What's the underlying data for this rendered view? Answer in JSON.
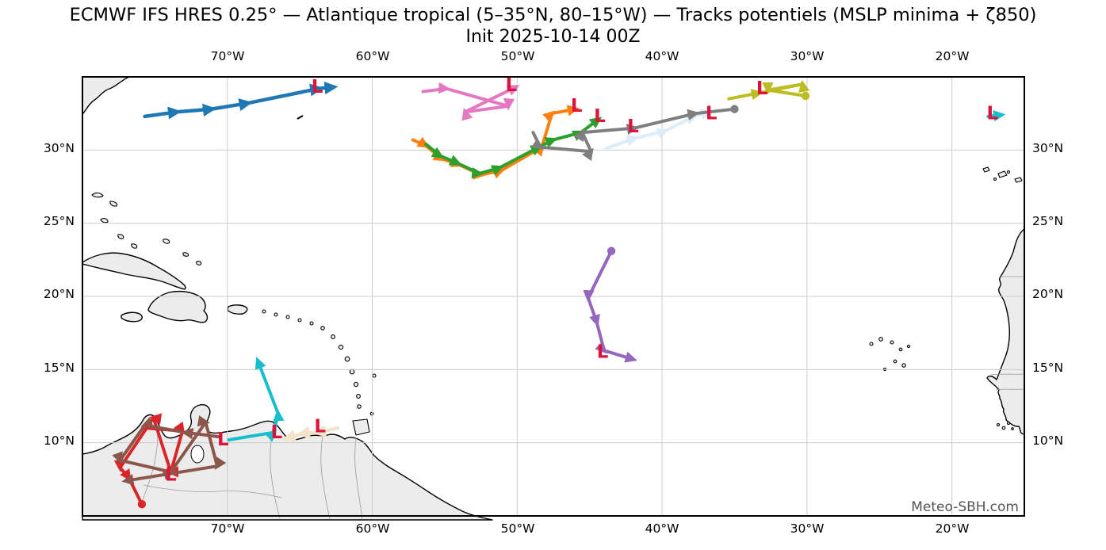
{
  "title": "ECMWF IFS HRES 0.25° — Atlantique tropical (5–35°N, 80–15°W) — Tracks potentiels (MSLP minima + ζ850)",
  "subtitle": "Init 2025-10-14 00Z",
  "watermark": "Meteo-SBH.com",
  "axis": {
    "top": [
      "70°W",
      "60°W",
      "50°W",
      "40°W",
      "30°W",
      "20°W"
    ],
    "bottom": [
      "70°W",
      "60°W",
      "50°W",
      "40°W",
      "30°W",
      "20°W"
    ],
    "left": [
      "30°N",
      "25°N",
      "20°N",
      "15°N",
      "10°N"
    ],
    "right": [
      "30°N",
      "25°N",
      "20°N",
      "15°N",
      "10°N"
    ]
  },
  "chart_data": {
    "type": "map-tracks",
    "projection_extent": {
      "lon_west": 80,
      "lon_east": 15,
      "lat_south": 5,
      "lat_north": 35
    },
    "gridlines": {
      "lons_w": [
        70,
        60,
        50,
        40,
        30,
        20
      ],
      "lats_n": [
        10,
        15,
        20,
        25,
        30
      ],
      "color": "#cccccc"
    },
    "low_symbol": "L",
    "low_color": "#dc143c",
    "tracks": [
      {
        "name": "cream-trinidad",
        "color": "#f3e3c9",
        "width": 4.5,
        "points": [
          [
            62.4,
            11.0
          ],
          [
            63.8,
            10.7
          ],
          [
            64.9,
            10.6
          ],
          [
            65.9,
            10.3
          ]
        ],
        "low": [
          63.6,
          11.2
        ]
      },
      {
        "name": "lightblue-central-atlantic",
        "color": "#ddecf9",
        "width": 4,
        "points": [
          [
            43.9,
            30.1
          ],
          [
            41.9,
            30.8
          ],
          [
            39.8,
            31.3
          ],
          [
            37.8,
            32.3
          ],
          [
            36.8,
            32.6
          ]
        ],
        "low": [
          36.6,
          32.6
        ]
      },
      {
        "name": "blue-northwest",
        "color": "#1f77b4",
        "width": 4.5,
        "points": [
          [
            75.7,
            32.3
          ],
          [
            73.5,
            32.6
          ],
          [
            71.1,
            32.8
          ],
          [
            68.6,
            33.2
          ],
          [
            63.7,
            34.2
          ],
          [
            62.7,
            34.3
          ]
        ],
        "low": [
          63.8,
          34.4
        ]
      },
      {
        "name": "pink-north-zigzag",
        "color": "#e377c2",
        "width": 4,
        "points": [
          [
            56.5,
            34.0
          ],
          [
            54.9,
            34.2
          ],
          [
            50.6,
            33.0
          ],
          [
            53.6,
            32.6
          ],
          [
            50.1,
            34.3
          ]
        ],
        "low": [
          50.4,
          34.5
        ]
      },
      {
        "name": "orange-recurving",
        "color": "#ff7f0e",
        "width": 4,
        "points": [
          [
            57.2,
            30.7
          ],
          [
            56.3,
            30.3
          ],
          [
            55.2,
            29.4
          ],
          [
            54.0,
            29.0
          ],
          [
            52.5,
            28.3
          ],
          [
            51.1,
            28.6
          ],
          [
            48.3,
            30.2
          ],
          [
            47.6,
            32.5
          ],
          [
            46.0,
            32.8
          ]
        ],
        "low": [
          45.9,
          33.1
        ]
      },
      {
        "name": "green-recurving",
        "color": "#2ca02c",
        "width": 4,
        "points": [
          [
            56.3,
            30.4
          ],
          [
            55.3,
            29.6
          ],
          [
            54.1,
            29.1
          ],
          [
            52.6,
            28.4
          ],
          [
            51.2,
            28.8
          ],
          [
            48.5,
            30.2
          ],
          [
            47.5,
            30.7
          ],
          [
            45.6,
            31.2
          ],
          [
            44.4,
            32.1
          ]
        ],
        "low": [
          44.3,
          32.4
        ]
      },
      {
        "name": "gray-central",
        "color": "#7f7f7f",
        "width": 4,
        "end_dot": true,
        "points": [
          [
            48.9,
            31.2
          ],
          [
            48.4,
            30.2
          ],
          [
            44.9,
            29.9
          ],
          [
            45.5,
            31.2
          ],
          [
            41.9,
            31.5
          ],
          [
            37.7,
            32.5
          ],
          [
            35.0,
            32.8
          ]
        ],
        "low": [
          42.0,
          31.7
        ]
      },
      {
        "name": "olive-northeast",
        "color": "#bcbd22",
        "width": 4,
        "end_dot": true,
        "points": [
          [
            35.4,
            33.5
          ],
          [
            33.3,
            33.9
          ],
          [
            30.3,
            34.5
          ],
          [
            32.7,
            34.1
          ],
          [
            30.1,
            33.7
          ]
        ],
        "low": [
          33.1,
          34.3
        ]
      },
      {
        "name": "cyan-far-east",
        "color": "#17becf",
        "width": 4,
        "points": [
          [
            17.5,
            32.3
          ],
          [
            16.6,
            32.4
          ]
        ],
        "low": [
          17.2,
          32.6
        ]
      },
      {
        "name": "cyan-caribbean",
        "color": "#17becf",
        "width": 4,
        "points": [
          [
            69.9,
            10.2
          ],
          [
            66.8,
            10.7
          ],
          [
            66.5,
            12.0
          ],
          [
            67.9,
            15.6
          ]
        ],
        "low": [
          66.6,
          10.8
        ]
      },
      {
        "name": "purple-mid-atlantic",
        "color": "#9467bd",
        "width": 4,
        "start_dot": true,
        "points": [
          [
            43.5,
            23.1
          ],
          [
            45.1,
            19.9
          ],
          [
            44.5,
            18.2
          ],
          [
            44.0,
            16.3
          ],
          [
            42.0,
            15.7
          ]
        ],
        "low": [
          44.1,
          16.3
        ]
      },
      {
        "name": "red-venezuela",
        "color": "#d9262b",
        "width": 4,
        "end_dot": true,
        "points": [
          [
            75.5,
            11.0
          ],
          [
            73.1,
            10.8
          ],
          [
            73.9,
            8.0
          ],
          [
            75.1,
            11.7
          ],
          [
            77.4,
            8.3
          ],
          [
            76.8,
            7.6
          ],
          [
            75.9,
            5.8
          ]
        ],
        "low": [
          73.9,
          7.9
        ]
      },
      {
        "name": "brown-venezuela",
        "color": "#8c564b",
        "width": 4,
        "points": [
          [
            70.5,
            10.4
          ],
          [
            72.9,
            10.7
          ],
          [
            75.7,
            11.2
          ],
          [
            77.4,
            8.8
          ],
          [
            73.9,
            8.0
          ],
          [
            71.5,
            11.4
          ],
          [
            70.7,
            8.4
          ],
          [
            77.0,
            7.4
          ]
        ],
        "low": [
          70.3,
          10.3
        ]
      }
    ]
  }
}
